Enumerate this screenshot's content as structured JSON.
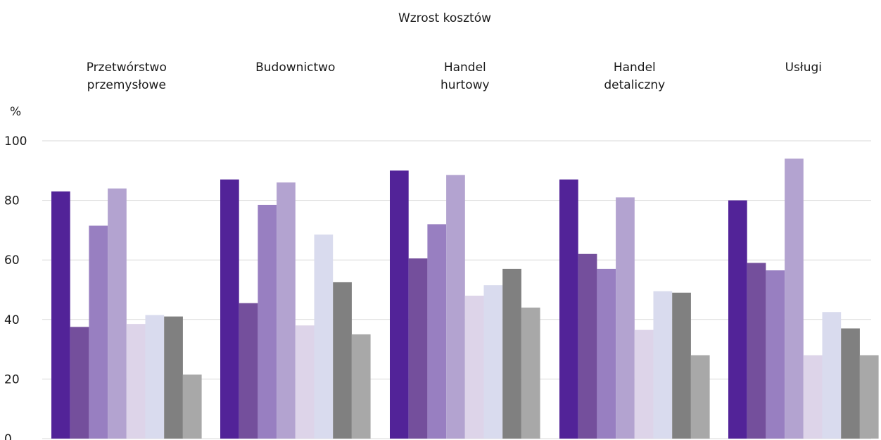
{
  "chart_data": {
    "type": "bar",
    "title": "Wzrost kosztów",
    "ylabel": "%",
    "ylim": [
      0,
      100
    ],
    "yticks": [
      "0",
      "20",
      "40",
      "60",
      "80",
      "100"
    ],
    "grid": true,
    "categories": [
      [
        "Przetwórstwo",
        "przemysłowe"
      ],
      [
        "Budownictwo"
      ],
      [
        "Handel",
        "hurtowy"
      ],
      [
        "Handel",
        "detaliczny"
      ],
      [
        "Usługi"
      ]
    ],
    "series": [
      {
        "color": "#522398",
        "values": [
          83,
          87,
          90,
          87,
          80
        ]
      },
      {
        "color": "#744f9c",
        "values": [
          37.5,
          45.5,
          60.5,
          62,
          59
        ]
      },
      {
        "color": "#987fc1",
        "values": [
          71.5,
          78.5,
          72,
          57,
          56.5
        ]
      },
      {
        "color": "#b3a3d0",
        "values": [
          84,
          86,
          88.5,
          81,
          94
        ]
      },
      {
        "color": "#ddd4e9",
        "values": [
          38.5,
          38,
          48,
          36.5,
          28
        ]
      },
      {
        "color": "#d9dbee",
        "values": [
          41.5,
          68.5,
          51.5,
          49.5,
          42.5
        ]
      },
      {
        "color": "#808080",
        "values": [
          41,
          52.5,
          57,
          49,
          37
        ]
      },
      {
        "color": "#a8a8a8",
        "values": [
          21.5,
          35,
          44,
          28,
          28
        ]
      }
    ]
  }
}
